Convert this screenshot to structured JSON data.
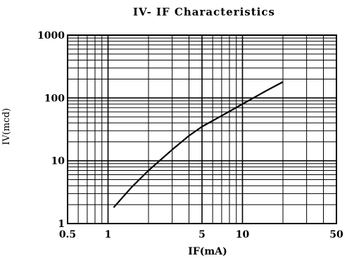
{
  "chart_data": {
    "type": "line",
    "title": "IV- IF  Characteristics",
    "xlabel": "IF(mA)",
    "ylabel": "IV(mcd)",
    "x_scale": "log",
    "y_scale": "log",
    "xlim": [
      0.5,
      50
    ],
    "ylim": [
      1,
      1000
    ],
    "grid": true,
    "x_tick_labels": [
      {
        "value": 0.5,
        "label": "0.5"
      },
      {
        "value": 1,
        "label": "1"
      },
      {
        "value": 5,
        "label": "5"
      },
      {
        "value": 10,
        "label": "10"
      },
      {
        "value": 50,
        "label": "50"
      }
    ],
    "y_tick_labels": [
      {
        "value": 1,
        "label": "1"
      },
      {
        "value": 10,
        "label": "10"
      },
      {
        "value": 100,
        "label": "100"
      },
      {
        "value": 1000,
        "label": "1000"
      }
    ],
    "series": [
      {
        "x": [
          1.1,
          1.5,
          2,
          3,
          4,
          5,
          7,
          10,
          15,
          20
        ],
        "y": [
          1.8,
          3.8,
          7,
          15,
          25,
          35,
          52,
          80,
          130,
          180
        ]
      }
    ]
  }
}
